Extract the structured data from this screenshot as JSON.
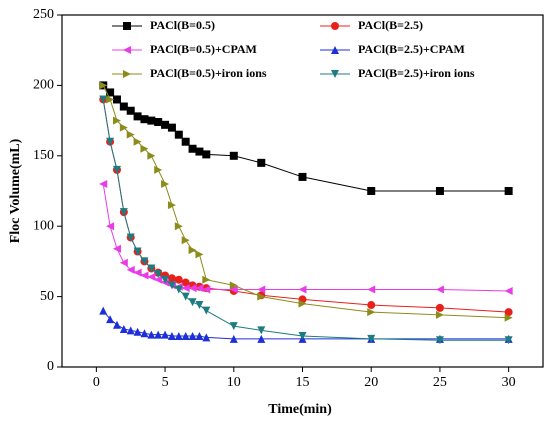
{
  "chart_data": {
    "type": "line",
    "xlabel": "Time(min)",
    "ylabel": "Floc Volume(mL)",
    "x": [
      0.5,
      1,
      1.5,
      2,
      2.5,
      3,
      3.5,
      4,
      4.5,
      5,
      5.5,
      6,
      6.5,
      7,
      7.5,
      8,
      10,
      12,
      15,
      20,
      25,
      30
    ],
    "xlim": [
      -2.5,
      32.5
    ],
    "xticks": [
      0,
      5,
      10,
      15,
      20,
      25,
      30
    ],
    "ylim": [
      0,
      250
    ],
    "yticks": [
      0,
      50,
      100,
      150,
      200,
      250
    ],
    "legend": "top",
    "series": [
      {
        "name": "PACl(B=0.5)",
        "color": "#000000",
        "marker": "square",
        "values": [
          200,
          195,
          190,
          185,
          182,
          178,
          176,
          175,
          174,
          172,
          170,
          165,
          160,
          155,
          153,
          151,
          150,
          145,
          135,
          125,
          125,
          125
        ]
      },
      {
        "name": "PACl(B=2.5)",
        "color": "#e8201c",
        "marker": "circle",
        "values": [
          190,
          160,
          140,
          110,
          92,
          82,
          75,
          70,
          67,
          65,
          63,
          62,
          60,
          58,
          57,
          56,
          54,
          51,
          48,
          44,
          42,
          39
        ]
      },
      {
        "name": "PACl(B=0.5)+CPAM",
        "color": "#e83ce8",
        "marker": "triangle-left",
        "values": [
          130,
          100,
          84,
          74,
          69,
          67,
          65,
          64,
          62,
          60,
          58,
          57,
          56,
          56,
          56,
          55,
          55,
          55,
          55,
          55,
          55,
          54
        ]
      },
      {
        "name": "PACl(B=2.5)+CPAM",
        "color": "#1c2fd8",
        "marker": "triangle-up",
        "values": [
          40,
          34,
          30,
          27,
          26,
          25,
          24,
          23,
          23,
          23,
          22,
          22,
          22,
          22,
          22,
          21,
          20,
          20,
          20,
          20,
          20,
          20
        ]
      },
      {
        "name": "PACl(B=0.5)+iron ions",
        "color": "#8c8c1c",
        "marker": "triangle-right",
        "values": [
          200,
          190,
          175,
          170,
          165,
          160,
          155,
          150,
          140,
          130,
          115,
          100,
          90,
          83,
          80,
          62,
          58,
          50,
          45,
          39,
          37,
          35
        ]
      },
      {
        "name": "PACl(B=2.5)+iron ions",
        "color": "#1c7c80",
        "marker": "triangle-down",
        "values": [
          190,
          160,
          140,
          110,
          92,
          82,
          75,
          70,
          66,
          62,
          58,
          55,
          50,
          46,
          44,
          40,
          29,
          26,
          22,
          20,
          19,
          19
        ]
      }
    ]
  }
}
